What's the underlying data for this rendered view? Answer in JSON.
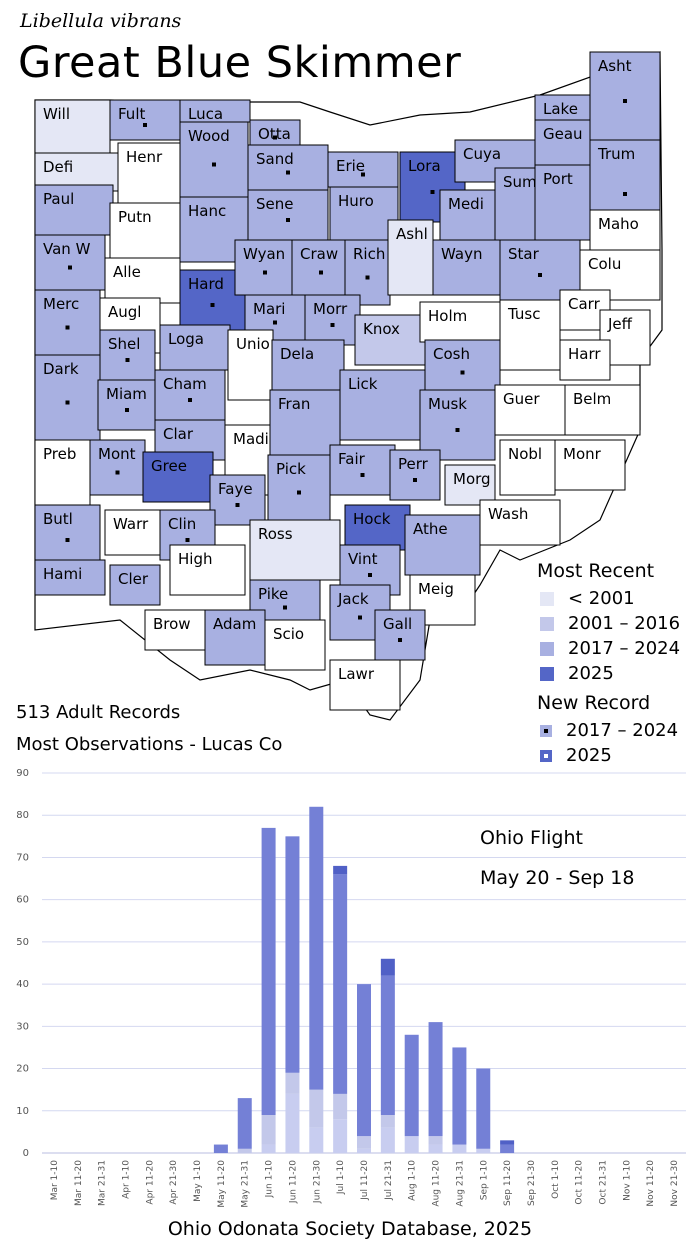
{
  "header": {
    "scientific_name": "Libellula vibrans",
    "common_name": "Great Blue Skimmer"
  },
  "colors": {
    "none": "#ffffff",
    "pre2001": "#e4e7f5",
    "y2001_2016": "#c3c8ea",
    "y2017_2024": "#a8b0e1",
    "y2025": "#5466c7",
    "bar_dark": "#7480d6",
    "bar_top": "#5060c6",
    "bar_light": "#c8cdf0"
  },
  "map": {
    "counties": [
      {
        "name": "Will",
        "cat": "pre2001",
        "dot": "none"
      },
      {
        "name": "Fult",
        "cat": "y2017_2024",
        "dot": "dark"
      },
      {
        "name": "Luca",
        "cat": "y2017_2024",
        "dot": "none"
      },
      {
        "name": "Otta",
        "cat": "y2017_2024",
        "dot": "dark"
      },
      {
        "name": "Lake",
        "cat": "y2017_2024",
        "dot": "none"
      },
      {
        "name": "Asht",
        "cat": "y2017_2024",
        "dot": "dark"
      },
      {
        "name": "Defi",
        "cat": "pre2001",
        "dot": "none"
      },
      {
        "name": "Henr",
        "cat": "none",
        "dot": "none"
      },
      {
        "name": "Wood",
        "cat": "y2017_2024",
        "dot": "dark"
      },
      {
        "name": "Sand",
        "cat": "y2017_2024",
        "dot": "dark"
      },
      {
        "name": "Erie",
        "cat": "y2017_2024",
        "dot": "dark"
      },
      {
        "name": "Lora",
        "cat": "y2025",
        "dot": "dark"
      },
      {
        "name": "Cuya",
        "cat": "y2017_2024",
        "dot": "none"
      },
      {
        "name": "Geau",
        "cat": "y2017_2024",
        "dot": "none"
      },
      {
        "name": "Trum",
        "cat": "y2017_2024",
        "dot": "dark"
      },
      {
        "name": "Paul",
        "cat": "y2017_2024",
        "dot": "none"
      },
      {
        "name": "Putn",
        "cat": "none",
        "dot": "none"
      },
      {
        "name": "Hanc",
        "cat": "y2017_2024",
        "dot": "none"
      },
      {
        "name": "Sene",
        "cat": "y2017_2024",
        "dot": "dark"
      },
      {
        "name": "Huro",
        "cat": "y2017_2024",
        "dot": "none"
      },
      {
        "name": "Medi",
        "cat": "y2017_2024",
        "dot": "none"
      },
      {
        "name": "Summ",
        "cat": "y2017_2024",
        "dot": "none"
      },
      {
        "name": "Port",
        "cat": "y2017_2024",
        "dot": "none"
      },
      {
        "name": "Maho",
        "cat": "none",
        "dot": "none"
      },
      {
        "name": "Van W",
        "cat": "y2017_2024",
        "dot": "dark"
      },
      {
        "name": "Alle",
        "cat": "none",
        "dot": "none"
      },
      {
        "name": "Hard",
        "cat": "y2025",
        "dot": "dark"
      },
      {
        "name": "Wyan",
        "cat": "y2017_2024",
        "dot": "dark"
      },
      {
        "name": "Craw",
        "cat": "y2017_2024",
        "dot": "dark"
      },
      {
        "name": "Rich",
        "cat": "y2017_2024",
        "dot": "dark"
      },
      {
        "name": "Ashl",
        "cat": "pre2001",
        "dot": "none"
      },
      {
        "name": "Wayn",
        "cat": "y2017_2024",
        "dot": "none"
      },
      {
        "name": "Star",
        "cat": "y2017_2024",
        "dot": "dark"
      },
      {
        "name": "Colu",
        "cat": "none",
        "dot": "none"
      },
      {
        "name": "Merc",
        "cat": "y2017_2024",
        "dot": "dark"
      },
      {
        "name": "Augl",
        "cat": "none",
        "dot": "none"
      },
      {
        "name": "Mari",
        "cat": "y2017_2024",
        "dot": "dark"
      },
      {
        "name": "Morr",
        "cat": "y2017_2024",
        "dot": "dark"
      },
      {
        "name": "Knox",
        "cat": "y2001_2016",
        "dot": "none"
      },
      {
        "name": "Holm",
        "cat": "none",
        "dot": "none"
      },
      {
        "name": "Tusc",
        "cat": "none",
        "dot": "none"
      },
      {
        "name": "Carr",
        "cat": "none",
        "dot": "none"
      },
      {
        "name": "Jeff",
        "cat": "none",
        "dot": "none"
      },
      {
        "name": "Shel",
        "cat": "y2017_2024",
        "dot": "dark"
      },
      {
        "name": "Loga",
        "cat": "y2017_2024",
        "dot": "none"
      },
      {
        "name": "Unio",
        "cat": "none",
        "dot": "none"
      },
      {
        "name": "Dela",
        "cat": "y2017_2024",
        "dot": "none"
      },
      {
        "name": "Lick",
        "cat": "y2017_2024",
        "dot": "none"
      },
      {
        "name": "Cosh",
        "cat": "y2017_2024",
        "dot": "dark"
      },
      {
        "name": "Harr",
        "cat": "none",
        "dot": "none"
      },
      {
        "name": "Dark",
        "cat": "y2017_2024",
        "dot": "dark"
      },
      {
        "name": "Miam",
        "cat": "y2017_2024",
        "dot": "dark"
      },
      {
        "name": "Cham",
        "cat": "y2017_2024",
        "dot": "dark"
      },
      {
        "name": "Fran",
        "cat": "y2017_2024",
        "dot": "none"
      },
      {
        "name": "Musk",
        "cat": "y2017_2024",
        "dot": "dark"
      },
      {
        "name": "Guer",
        "cat": "none",
        "dot": "none"
      },
      {
        "name": "Belm",
        "cat": "none",
        "dot": "none"
      },
      {
        "name": "Clar",
        "cat": "y2017_2024",
        "dot": "none"
      },
      {
        "name": "Madi",
        "cat": "none",
        "dot": "none"
      },
      {
        "name": "Fair",
        "cat": "y2017_2024",
        "dot": "dark"
      },
      {
        "name": "Perr",
        "cat": "y2017_2024",
        "dot": "dark"
      },
      {
        "name": "Nobl",
        "cat": "none",
        "dot": "none"
      },
      {
        "name": "Monr",
        "cat": "none",
        "dot": "none"
      },
      {
        "name": "Preb",
        "cat": "none",
        "dot": "none"
      },
      {
        "name": "Mont",
        "cat": "y2017_2024",
        "dot": "dark"
      },
      {
        "name": "Gree",
        "cat": "y2025",
        "dot": "none"
      },
      {
        "name": "Pick",
        "cat": "y2017_2024",
        "dot": "dark"
      },
      {
        "name": "Morg",
        "cat": "pre2001",
        "dot": "none"
      },
      {
        "name": "Wash",
        "cat": "none",
        "dot": "none"
      },
      {
        "name": "Butl",
        "cat": "y2017_2024",
        "dot": "dark"
      },
      {
        "name": "Warr",
        "cat": "none",
        "dot": "none"
      },
      {
        "name": "Faye",
        "cat": "y2017_2024",
        "dot": "dark"
      },
      {
        "name": "Clin",
        "cat": "y2017_2024",
        "dot": "dark"
      },
      {
        "name": "Ross",
        "cat": "pre2001",
        "dot": "none"
      },
      {
        "name": "Hock",
        "cat": "y2025",
        "dot": "none"
      },
      {
        "name": "Athe",
        "cat": "y2017_2024",
        "dot": "none"
      },
      {
        "name": "Vint",
        "cat": "y2017_2024",
        "dot": "dark"
      },
      {
        "name": "Hami",
        "cat": "y2017_2024",
        "dot": "none"
      },
      {
        "name": "Cler",
        "cat": "y2017_2024",
        "dot": "none"
      },
      {
        "name": "High",
        "cat": "none",
        "dot": "none"
      },
      {
        "name": "Pike",
        "cat": "y2017_2024",
        "dot": "dark"
      },
      {
        "name": "Jack",
        "cat": "y2017_2024",
        "dot": "dark"
      },
      {
        "name": "Meig",
        "cat": "none",
        "dot": "none"
      },
      {
        "name": "Brow",
        "cat": "none",
        "dot": "none"
      },
      {
        "name": "Adam",
        "cat": "y2017_2024",
        "dot": "none"
      },
      {
        "name": "Scio",
        "cat": "none",
        "dot": "none"
      },
      {
        "name": "Gall",
        "cat": "y2017_2024",
        "dot": "dark"
      },
      {
        "name": "Lawr",
        "cat": "none",
        "dot": "none"
      }
    ]
  },
  "legend": {
    "recent_title": "Most Recent",
    "recent_items": [
      {
        "label": "< 2001",
        "color_key": "pre2001"
      },
      {
        "label": "2001 – 2016",
        "color_key": "y2001_2016"
      },
      {
        "label": "2017 – 2024",
        "color_key": "y2017_2024"
      },
      {
        "label": "2025",
        "color_key": "y2025"
      }
    ],
    "new_title": "New Record",
    "new_items": [
      {
        "label": "2017 – 2024",
        "color_key": "y2017_2024",
        "dot": "dark"
      },
      {
        "label": "2025",
        "color_key": "y2025",
        "dot": "light"
      }
    ]
  },
  "info": {
    "records": "513 Adult Records",
    "most_obs": "Most Observations - Lucas Co"
  },
  "chart_data": {
    "type": "bar",
    "stacked": true,
    "title": "",
    "annotation_line1": "Ohio Flight",
    "annotation_line2": "May 20 - Sep 18",
    "xlabel": "",
    "ylabel": "",
    "ylim": [
      0,
      90
    ],
    "yticks": [
      0,
      10,
      20,
      30,
      40,
      50,
      60,
      70,
      80,
      90
    ],
    "grid": true,
    "categories": [
      "Mar 1-10",
      "Mar 11-20",
      "Mar 21-31",
      "Apr 1-10",
      "Apr 11-20",
      "Apr 21-30",
      "May 1-10",
      "May 11-20",
      "May 21-31",
      "Jun 1-10",
      "Jun 11-20",
      "Jun 21-30",
      "Jul 1-10",
      "Jul 11-20",
      "Jul 21-31",
      "Aug 1-10",
      "Aug 11-20",
      "Aug 21-31",
      "Sep 1-10",
      "Sep 11-20",
      "Sep 21-30",
      "Oct 1-10",
      "Oct 11-20",
      "Oct 21-31",
      "Nov 1-10",
      "Nov 11-20",
      "Nov 21-30"
    ],
    "series": [
      {
        "name": "light",
        "color_key": "bar_light",
        "values": [
          0,
          0,
          0,
          0,
          0,
          0,
          0,
          0,
          0,
          2,
          14,
          6,
          8,
          1,
          6,
          4,
          2,
          2,
          1,
          0,
          0,
          0,
          0,
          0,
          0,
          0,
          0
        ]
      },
      {
        "name": "medium",
        "color_key": "y2001_2016",
        "values": [
          0,
          0,
          0,
          0,
          0,
          0,
          0,
          0,
          1,
          7,
          5,
          9,
          6,
          3,
          3,
          0,
          2,
          0,
          0,
          0,
          0,
          0,
          0,
          0,
          0,
          0,
          0
        ]
      },
      {
        "name": "main",
        "color_key": "bar_dark",
        "values": [
          0,
          0,
          0,
          0,
          0,
          0,
          0,
          2,
          12,
          68,
          56,
          67,
          52,
          36,
          33,
          24,
          27,
          23,
          19,
          2,
          0,
          0,
          0,
          0,
          0,
          0,
          0
        ]
      },
      {
        "name": "top",
        "color_key": "bar_top",
        "values": [
          0,
          0,
          0,
          0,
          0,
          0,
          0,
          0,
          0,
          0,
          0,
          0,
          2,
          0,
          4,
          0,
          0,
          0,
          0,
          1,
          0,
          0,
          0,
          0,
          0,
          0,
          0
        ]
      }
    ]
  },
  "footer": {
    "source": "Ohio Odonata Society Database, 2025"
  }
}
